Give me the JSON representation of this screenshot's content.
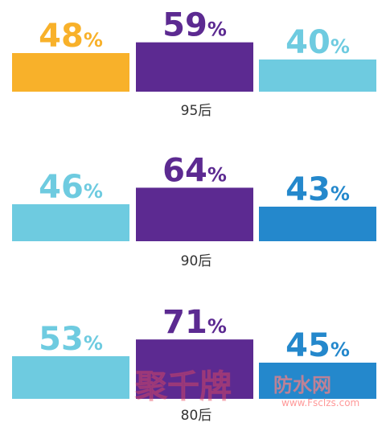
{
  "chart_data": [
    {
      "type": "bar",
      "categories": [
        "",
        "",
        ""
      ],
      "values": [
        48,
        59,
        40
      ],
      "value_labels": [
        "48%",
        "59%",
        "40%"
      ],
      "colors": [
        "#f8b12a",
        "#5c2a91",
        "#6ecbe0"
      ],
      "group_label": "95后"
    },
    {
      "type": "bar",
      "categories": [
        "",
        "",
        ""
      ],
      "values": [
        46,
        64,
        43
      ],
      "value_labels": [
        "46%",
        "64%",
        "43%"
      ],
      "colors": [
        "#6ecbe0",
        "#5c2a91",
        "#2488cc"
      ],
      "group_label": "90后"
    },
    {
      "type": "bar",
      "categories": [
        "",
        "",
        ""
      ],
      "values": [
        53,
        71,
        45
      ],
      "value_labels": [
        "53%",
        "71%",
        "45%"
      ],
      "colors": [
        "#6ecbe0",
        "#5c2a91",
        "#2488cc"
      ],
      "group_label": "80后"
    }
  ],
  "watermark": {
    "brand": "聚千牌",
    "site_name": "防水网",
    "url": "www.Fsclzs.com",
    "brand_color": "#e84a5f",
    "site_color": "#ff7f7f"
  }
}
